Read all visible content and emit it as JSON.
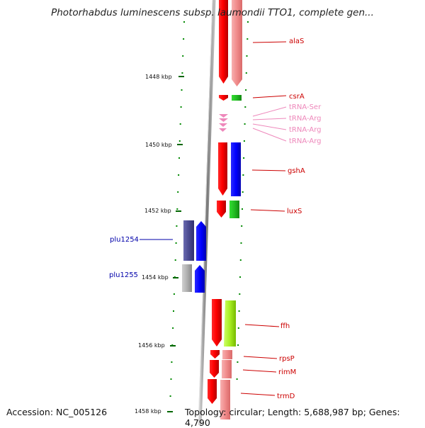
{
  "title": "Photorhabdus luminescens subsp. laumondii TTO1, complete gen...",
  "accession": "Accession: NC_005126",
  "topology": "Topology: circular; Length: 5,688,987 bp; Genes: 4,790",
  "scale_labels": [
    "1448 kbp",
    "1450 kbp",
    "1452 kbp",
    "1454 kbp",
    "1456 kbp",
    "1458 kbp"
  ],
  "genes": [
    {
      "label": "alaS",
      "color": "#cc0000"
    },
    {
      "label": "csrA",
      "color": "#cc0000"
    },
    {
      "label": "tRNA-Ser",
      "color": "#ee88bb"
    },
    {
      "label": "tRNA-Arg",
      "color": "#ee88bb"
    },
    {
      "label": "tRNA-Arg",
      "color": "#ee88bb"
    },
    {
      "label": "tRNA-Arg",
      "color": "#ee88bb"
    },
    {
      "label": "gshA",
      "color": "#cc0000"
    },
    {
      "label": "luxS",
      "color": "#cc0000"
    },
    {
      "label": "plu1254",
      "color": "#0000aa"
    },
    {
      "label": "plu1255",
      "color": "#0000aa"
    },
    {
      "label": "ffh",
      "color": "#cc0000"
    },
    {
      "label": "rpsP",
      "color": "#cc0000"
    },
    {
      "label": "rimM",
      "color": "#cc0000"
    },
    {
      "label": "trmD",
      "color": "#cc0000"
    }
  ]
}
